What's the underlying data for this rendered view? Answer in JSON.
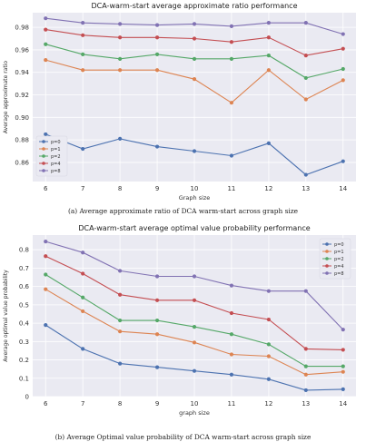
{
  "chart_data": [
    {
      "type": "line",
      "title": "DCA-warm-start average approximate ratio performance",
      "xlabel": "Graph size",
      "ylabel": "Average approximate ratio",
      "x": [
        6,
        7,
        8,
        9,
        10,
        11,
        12,
        13,
        14
      ],
      "xticks": [
        "6",
        "7",
        "8",
        "9",
        "10",
        "11",
        "12",
        "13",
        "14"
      ],
      "ylim": [
        0.843,
        0.993
      ],
      "yticks": [
        0.86,
        0.88,
        0.9,
        0.92,
        0.94,
        0.96,
        0.98
      ],
      "ytick_labels": [
        "0.86",
        "0.88",
        "0.90",
        "0.92",
        "0.94",
        "0.96",
        "0.98"
      ],
      "grid": true,
      "legend_position": "lower-left",
      "series": [
        {
          "name": "p=0",
          "color": "#4c72b0",
          "values": [
            0.885,
            0.872,
            0.881,
            0.874,
            0.87,
            0.866,
            0.877,
            0.849,
            0.861
          ]
        },
        {
          "name": "p=1",
          "color": "#dd8452",
          "values": [
            0.951,
            0.942,
            0.942,
            0.942,
            0.934,
            0.913,
            0.942,
            0.916,
            0.933
          ]
        },
        {
          "name": "p=2",
          "color": "#55a868",
          "values": [
            0.965,
            0.956,
            0.952,
            0.956,
            0.952,
            0.952,
            0.955,
            0.935,
            0.943
          ]
        },
        {
          "name": "p=4",
          "color": "#c44e52",
          "values": [
            0.978,
            0.973,
            0.971,
            0.971,
            0.97,
            0.967,
            0.971,
            0.955,
            0.961
          ]
        },
        {
          "name": "p=8",
          "color": "#8172b3",
          "values": [
            0.988,
            0.984,
            0.983,
            0.982,
            0.983,
            0.981,
            0.984,
            0.984,
            0.974
          ]
        }
      ],
      "caption": "(a) Average approximate ratio of DCA warm-start across graph size"
    },
    {
      "type": "line",
      "title": "DCA-warm-start average optimal value probability performance",
      "xlabel": "graph size",
      "ylabel": "Average optimal value probability",
      "x": [
        6,
        7,
        8,
        9,
        10,
        11,
        12,
        13,
        14
      ],
      "xticks": [
        "6",
        "7",
        "8",
        "9",
        "10",
        "11",
        "12",
        "13",
        "14"
      ],
      "ylim": [
        0,
        0.88
      ],
      "yticks": [
        0,
        0.1,
        0.2,
        0.3,
        0.4,
        0.5,
        0.6,
        0.7,
        0.8
      ],
      "ytick_labels": [
        "0",
        "0.1",
        "0.2",
        "0.3",
        "0.4",
        "0.5",
        "0.6",
        "0.7",
        "0.8"
      ],
      "grid": true,
      "legend_position": "top-right",
      "series": [
        {
          "name": "p=0",
          "color": "#4c72b0",
          "values": [
            0.39,
            0.26,
            0.18,
            0.16,
            0.14,
            0.12,
            0.095,
            0.035,
            0.04
          ]
        },
        {
          "name": "p=1",
          "color": "#dd8452",
          "values": [
            0.585,
            0.465,
            0.355,
            0.34,
            0.295,
            0.23,
            0.22,
            0.12,
            0.135
          ]
        },
        {
          "name": "p=2",
          "color": "#55a868",
          "values": [
            0.665,
            0.54,
            0.415,
            0.415,
            0.38,
            0.34,
            0.285,
            0.165,
            0.165
          ]
        },
        {
          "name": "p=4",
          "color": "#c44e52",
          "values": [
            0.765,
            0.67,
            0.555,
            0.525,
            0.525,
            0.455,
            0.42,
            0.26,
            0.255
          ]
        },
        {
          "name": "p=8",
          "color": "#8172b3",
          "values": [
            0.845,
            0.785,
            0.685,
            0.655,
            0.655,
            0.605,
            0.575,
            0.575,
            0.365
          ]
        }
      ],
      "caption": "(b) Average Optimal value probability of DCA warm-start across graph size"
    }
  ]
}
